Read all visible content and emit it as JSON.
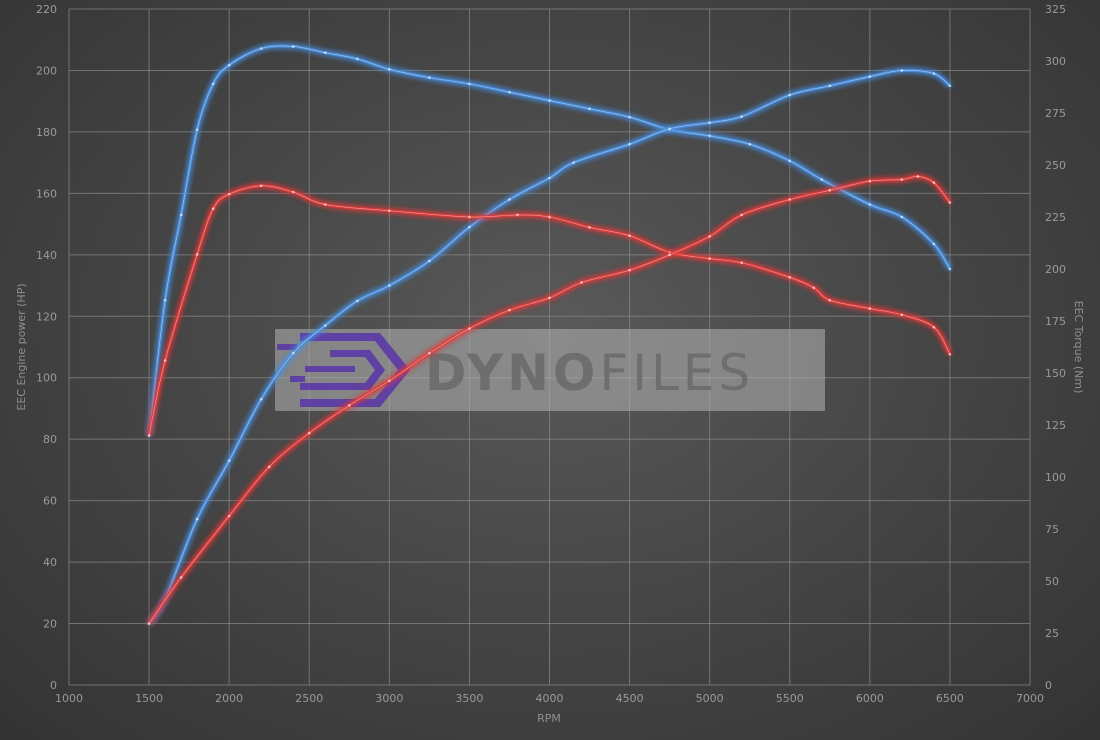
{
  "watermark": {
    "text_bold": "DYNO",
    "text_light": "FILES"
  },
  "chart_data": {
    "type": "line",
    "xlabel": "RPM",
    "ylabel_left": "EEC Engine power (HP)",
    "ylabel_right": "EEC Torque (Nm)",
    "xlim": [
      1000,
      7000
    ],
    "ylim_left": [
      0,
      220
    ],
    "ylim_right": [
      0,
      325
    ],
    "x_ticks": [
      1000,
      1500,
      2000,
      2500,
      3000,
      3500,
      4000,
      4500,
      5000,
      5500,
      6000,
      6500,
      7000
    ],
    "y_left_ticks": [
      0,
      20,
      40,
      60,
      80,
      100,
      120,
      140,
      160,
      180,
      200,
      220
    ],
    "y_right_ticks": [
      0,
      25,
      50,
      75,
      100,
      125,
      150,
      175,
      200,
      225,
      250,
      275,
      300,
      325
    ],
    "grid": true,
    "colors": {
      "tuned": "#4a8fe0",
      "stock": "#e03a3a"
    },
    "series": [
      {
        "key": "tuned_torque",
        "axis": "right",
        "color": "#4a8fe0",
        "x": [
          1500,
          1600,
          1700,
          1800,
          1900,
          2000,
          2200,
          2400,
          2600,
          2800,
          3000,
          3250,
          3500,
          3750,
          4000,
          4250,
          4500,
          4750,
          5000,
          5250,
          5500,
          5700,
          6000,
          6200,
          6400,
          6500
        ],
        "y": [
          120,
          185,
          226,
          267,
          289,
          298,
          306,
          307,
          304,
          301,
          296,
          292,
          289,
          285,
          281,
          277,
          273,
          267,
          264,
          260,
          252,
          243,
          231,
          225,
          212,
          200
        ]
      },
      {
        "key": "tuned_power",
        "axis": "left",
        "color": "#4a8fe0",
        "x": [
          1500,
          1600,
          1800,
          2000,
          2200,
          2400,
          2600,
          2800,
          3000,
          3250,
          3500,
          3750,
          4000,
          4150,
          4500,
          4750,
          5000,
          5200,
          5500,
          5750,
          6000,
          6200,
          6400,
          6500
        ],
        "y": [
          20,
          28,
          54,
          73,
          93,
          108,
          117,
          125,
          130,
          138,
          149,
          158,
          165,
          170,
          176,
          181,
          183,
          185,
          192,
          195,
          198,
          200,
          199,
          195
        ]
      },
      {
        "key": "stock_torque",
        "axis": "right",
        "color": "#e03a3a",
        "x": [
          1500,
          1600,
          1800,
          1900,
          2000,
          2200,
          2400,
          2600,
          3000,
          3500,
          3800,
          4000,
          4250,
          4500,
          4750,
          5000,
          5200,
          5500,
          5650,
          5750,
          6000,
          6200,
          6400,
          6500
        ],
        "y": [
          120,
          156,
          207,
          229,
          236,
          240,
          237,
          231,
          228,
          225,
          226,
          225,
          220,
          216,
          208,
          205,
          203,
          196,
          191,
          185,
          181,
          178,
          172,
          159
        ]
      },
      {
        "key": "stock_power",
        "axis": "left",
        "color": "#e03a3a",
        "x": [
          1500,
          1700,
          2000,
          2250,
          2500,
          2750,
          3000,
          3250,
          3500,
          3750,
          4000,
          4200,
          4500,
          4750,
          5000,
          5200,
          5500,
          5750,
          6000,
          6200,
          6300,
          6400,
          6500
        ],
        "y": [
          20,
          35,
          55,
          71,
          82,
          91,
          99,
          108,
          116,
          122,
          126,
          131,
          135,
          140,
          146,
          153,
          158,
          161,
          164,
          164.5,
          165.5,
          163.5,
          157
        ]
      }
    ]
  }
}
